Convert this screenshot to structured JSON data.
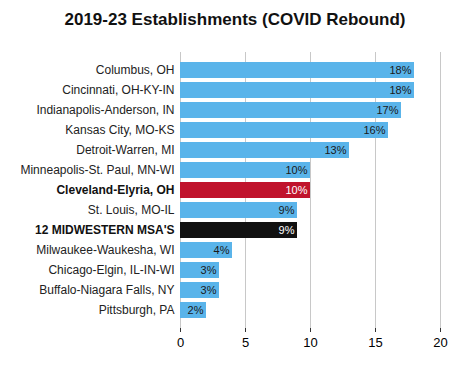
{
  "chart_data": {
    "type": "bar",
    "orientation": "horizontal",
    "title": "2019-23 Establishments (COVID Rebound)",
    "categories": [
      "Columbus, OH",
      "Cincinnati, OH-KY-IN",
      "Indianapolis-Anderson, IN",
      "Kansas City, MO-KS",
      "Detroit-Warren, MI",
      "Minneapolis-St. Paul, MN-WI",
      "Cleveland-Elyria, OH",
      "St. Louis, MO-IL",
      "12 MIDWESTERN MSA'S",
      "Milwaukee-Waukesha, WI",
      "Chicago-Elgin, IL-IN-WI",
      "Buffalo-Niagara Falls, NY",
      "Pittsburgh, PA"
    ],
    "values": [
      18,
      18,
      17,
      16,
      13,
      10,
      10,
      9,
      9,
      4,
      3,
      3,
      2
    ],
    "value_labels": [
      "18%",
      "18%",
      "17%",
      "16%",
      "13%",
      "10%",
      "10%",
      "9%",
      "9%",
      "4%",
      "3%",
      "3%",
      "2%"
    ],
    "data_labels": true,
    "color": "#5ab4ea",
    "colors": [
      "#5ab4ea",
      "#5ab4ea",
      "#5ab4ea",
      "#5ab4ea",
      "#5ab4ea",
      "#5ab4ea",
      "#c0132c",
      "#5ab4ea",
      "#111111",
      "#5ab4ea",
      "#5ab4ea",
      "#5ab4ea",
      "#5ab4ea"
    ],
    "xlim": [
      0,
      20
    ],
    "xticks": [
      0,
      5,
      10,
      15,
      20
    ],
    "grid": true
  }
}
